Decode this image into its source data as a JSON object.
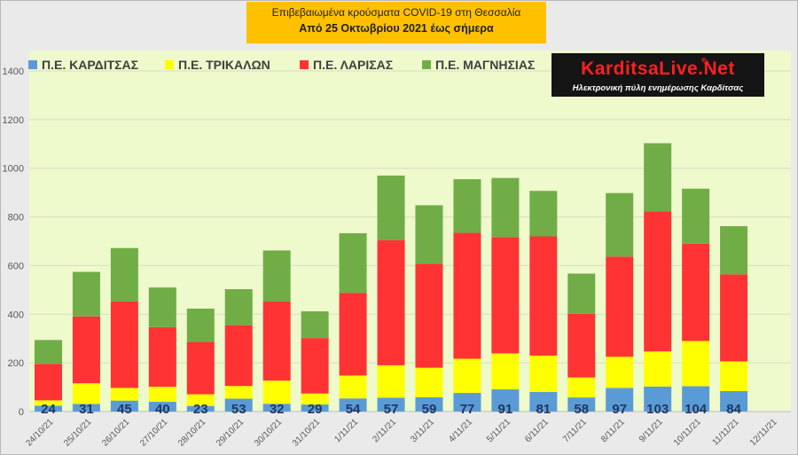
{
  "header": {
    "title": "Επιβεβαιωμένα κρούσματα COVID-19 στη Θεσσαλία",
    "subtitle": "Από 25 Οκτωβρίου 2021 έως σήμερα"
  },
  "logo": {
    "name": "KarditsaLive.Net",
    "tagline": "Ηλεκτρονική πύλη ενημέρωσης Καρδίτσας"
  },
  "colors": {
    "plot_background": "#eef9cc",
    "gridline": "#d9dcc4",
    "title_box": "#ffc000"
  },
  "chart_data": {
    "type": "bar",
    "stacked": true,
    "categories": [
      "24/10/21",
      "25/10/21",
      "26/10/21",
      "27/10/21",
      "28/10/21",
      "29/10/21",
      "30/10/21",
      "31/10/21",
      "1/11/21",
      "2/11/21",
      "3/11/21",
      "4/11/21",
      "5/11/21",
      "6/11/21",
      "7/11/21",
      "8/11/21",
      "9/11/21",
      "10/11/21",
      "11/11/21",
      "12/11/21"
    ],
    "ylim": [
      0,
      1400
    ],
    "yticks": [
      0,
      200,
      400,
      600,
      800,
      1000,
      1200,
      1400
    ],
    "grid": true,
    "legend_position": "top-left",
    "series": [
      {
        "name": "Π.Ε. ΚΑΡΔΙΤΣΑΣ",
        "color": "#5b9bd5",
        "values": [
          24,
          31,
          45,
          40,
          23,
          53,
          32,
          29,
          54,
          57,
          59,
          77,
          91,
          81,
          58,
          97,
          103,
          104,
          84,
          null
        ]
      },
      {
        "name": "Π.Ε. ΤΡΙΚΑΛΩΝ",
        "color": "#ffff00",
        "values": [
          22,
          85,
          52,
          62,
          48,
          52,
          95,
          45,
          94,
          133,
          121,
          140,
          148,
          149,
          82,
          128,
          144,
          186,
          122,
          null
        ]
      },
      {
        "name": "Π.Ε. ΛΑΡΙΣΑΣ",
        "color": "#ff3333",
        "values": [
          150,
          275,
          355,
          245,
          215,
          250,
          325,
          228,
          340,
          515,
          428,
          518,
          478,
          490,
          262,
          412,
          575,
          400,
          358,
          null
        ]
      },
      {
        "name": "Π.Ε. ΜΑΓΝΗΣΙΑΣ",
        "color": "#70ad47",
        "values": [
          98,
          183,
          220,
          163,
          137,
          148,
          210,
          110,
          245,
          265,
          240,
          220,
          243,
          187,
          165,
          261,
          281,
          226,
          198,
          null
        ]
      }
    ],
    "data_labels": [
      "24",
      "31",
      "45",
      "40",
      "23",
      "53",
      "32",
      "29",
      "54",
      "57",
      "59",
      "77",
      "91",
      "81",
      "58",
      "97",
      "103",
      "104",
      "84",
      ""
    ]
  }
}
